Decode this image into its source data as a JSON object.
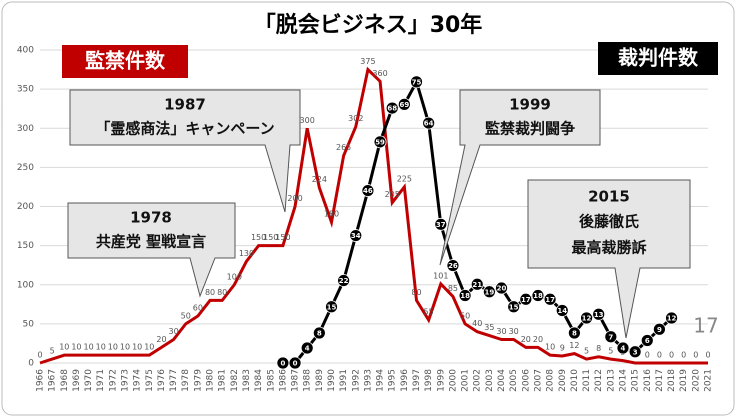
{
  "chart_data": {
    "type": "line",
    "title": "「脱会ビジネス」30年",
    "categories": [
      "1966",
      "1967",
      "1968",
      "1969",
      "1970",
      "1971",
      "1972",
      "1973",
      "1974",
      "1975",
      "1976",
      "1977",
      "1978",
      "1979",
      "1980",
      "1981",
      "1982",
      "1983",
      "1984",
      "1985",
      "1986",
      "1987",
      "1988",
      "1989",
      "1990",
      "1991",
      "1992",
      "1993",
      "1994",
      "1995",
      "1996",
      "1997",
      "1998",
      "1999",
      "2000",
      "2001",
      "2002",
      "2003",
      "2004",
      "2005",
      "2006",
      "2007",
      "2008",
      "2009",
      "2010",
      "2011",
      "2012",
      "2013",
      "2014",
      "2015",
      "2016",
      "2017",
      "2018",
      "2019",
      "2020",
      "2021"
    ],
    "ylim": [
      0,
      400
    ],
    "yticks": [
      0,
      50,
      100,
      150,
      200,
      250,
      300,
      350,
      400
    ],
    "y2lim": [
      0,
      83.5
    ],
    "grid": true,
    "series": [
      {
        "name": "監禁件数",
        "color": "#c00000",
        "values": [
          0,
          5,
          10,
          10,
          10,
          10,
          10,
          10,
          10,
          10,
          20,
          30,
          50,
          60,
          80,
          80,
          100,
          130,
          150,
          150,
          150,
          200,
          300,
          224,
          180,
          265,
          302,
          375,
          360,
          205,
          225,
          80,
          55,
          101,
          85,
          50,
          40,
          35,
          30,
          30,
          20,
          20,
          10,
          9,
          12,
          5,
          8,
          5,
          3,
          0,
          0,
          0,
          0,
          0,
          0,
          0
        ]
      },
      {
        "name": "裁判件数",
        "color": "#000000",
        "axis": "y2",
        "values": [
          null,
          null,
          null,
          null,
          null,
          null,
          null,
          null,
          null,
          null,
          null,
          null,
          null,
          null,
          null,
          null,
          null,
          null,
          null,
          null,
          0,
          0,
          4,
          8,
          15,
          22,
          34,
          46,
          59,
          68,
          69,
          75,
          64,
          37,
          26,
          18,
          21,
          19,
          20,
          15,
          17,
          18,
          17,
          14,
          8,
          12,
          13,
          7,
          4,
          3,
          6,
          9,
          12,
          null,
          null,
          null
        ]
      }
    ],
    "annotations": [
      {
        "lines": [
          "1987",
          "「霊感商法」キャンペーン"
        ]
      },
      {
        "lines": [
          "1978",
          "共産党 聖戦宣言"
        ]
      },
      {
        "lines": [
          "1999",
          "監禁裁判闘争"
        ]
      },
      {
        "lines": [
          "2015",
          "後藤徹氏",
          "最高裁勝訴"
        ]
      }
    ],
    "note": "17"
  }
}
